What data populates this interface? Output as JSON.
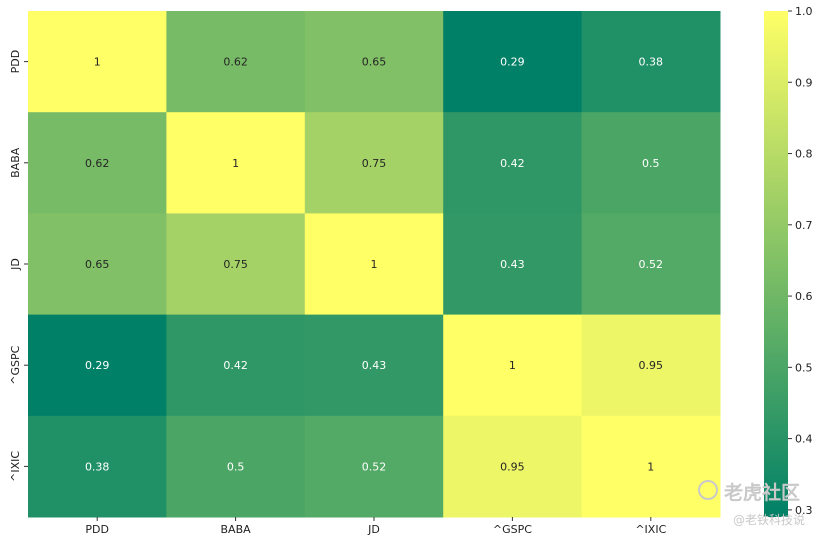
{
  "chart_data": {
    "type": "heatmap",
    "title": "",
    "xlabel": "",
    "ylabel": "",
    "x_categories": [
      "PDD",
      "BABA",
      "JD",
      "^GSPC",
      "^IXIC"
    ],
    "y_categories": [
      "PDD",
      "BABA",
      "JD",
      "^GSPC",
      "^IXIC"
    ],
    "values": [
      [
        1,
        0.62,
        0.65,
        0.29,
        0.38
      ],
      [
        0.62,
        1,
        0.75,
        0.42,
        0.5
      ],
      [
        0.65,
        0.75,
        1,
        0.43,
        0.52
      ],
      [
        0.29,
        0.42,
        0.43,
        1,
        0.95
      ],
      [
        0.38,
        0.5,
        0.52,
        0.95,
        1
      ]
    ],
    "cell_labels": [
      [
        "1",
        "0.62",
        "0.65",
        "0.29",
        "0.38"
      ],
      [
        "0.62",
        "1",
        "0.75",
        "0.42",
        "0.5"
      ],
      [
        "0.65",
        "0.75",
        "1",
        "0.43",
        "0.52"
      ],
      [
        "0.29",
        "0.42",
        "0.43",
        "1",
        "0.95"
      ],
      [
        "0.38",
        "0.5",
        "0.52",
        "0.95",
        "1"
      ]
    ],
    "colormap": "summer",
    "colormap_low": "#008066",
    "colormap_high": "#ffff66",
    "vmin": 0.29,
    "vmax": 1.0,
    "colorbar": {
      "ticks": [
        0.3,
        0.4,
        0.5,
        0.6,
        0.7,
        0.8,
        0.9,
        1.0
      ],
      "tick_labels": [
        "0.3",
        "0.4",
        "0.5",
        "0.6",
        "0.7",
        "0.8",
        "0.9",
        "1.0"
      ]
    },
    "grid": false,
    "legend": "colorbar-right"
  },
  "watermark": {
    "main": "老虎社区",
    "sub": "@老铁科技说"
  }
}
